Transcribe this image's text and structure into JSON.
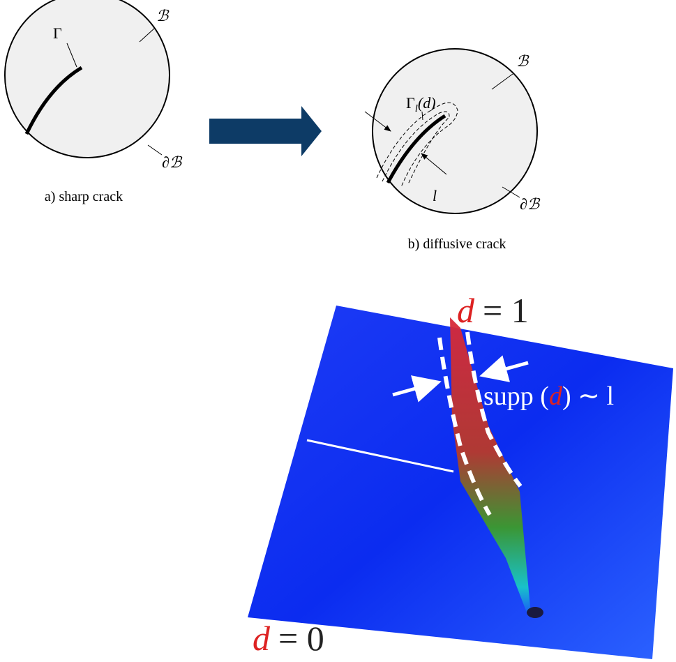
{
  "panel_a": {
    "gamma_label": "Γ",
    "body_label": "ℬ",
    "boundary_label": "∂ℬ",
    "caption": "a) sharp crack"
  },
  "panel_b": {
    "gamma_label": [
      "Γ",
      "l",
      "(d)"
    ],
    "body_label": "ℬ",
    "width_label": "l",
    "boundary_label": "∂ℬ",
    "caption": "b) diffusive crack"
  },
  "simulation": {
    "top_label": [
      "d",
      "= 1"
    ],
    "support_label": [
      "supp (",
      "d",
      ") ∼ l"
    ],
    "bottom_label": [
      "d",
      "= 0"
    ]
  }
}
